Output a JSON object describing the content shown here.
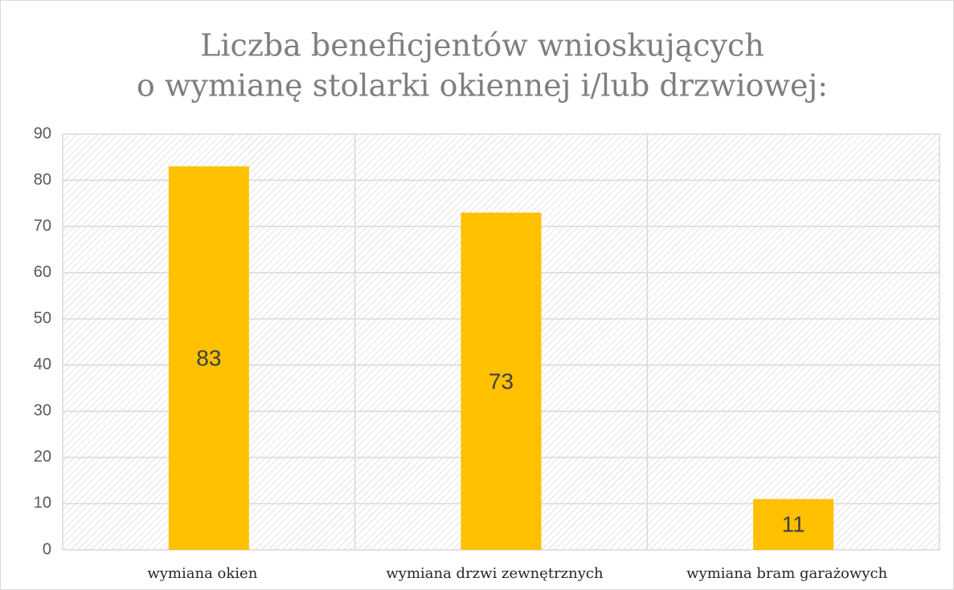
{
  "chart_data": {
    "type": "bar",
    "title": [
      "Liczba beneficjentów wnioskujących",
      "o wymianę stolarki okiennej i/lub drzwiowej:"
    ],
    "categories": [
      "wymiana okien",
      "wymiana drzwi zewnętrznych",
      "wymiana bram garażowych"
    ],
    "values": [
      83,
      73,
      11
    ],
    "color": "#ffc000",
    "ylim": [
      0,
      90
    ],
    "yticks": [
      0,
      10,
      20,
      30,
      40,
      50,
      60,
      70,
      80,
      90
    ],
    "grid": true
  }
}
